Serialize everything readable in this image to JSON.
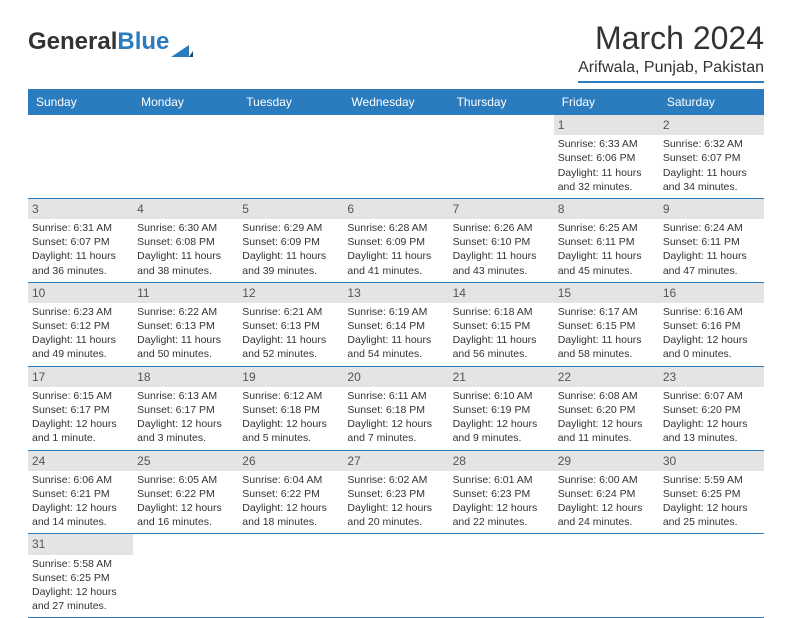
{
  "logo": {
    "text1": "General",
    "text2": "Blue"
  },
  "title": "March 2024",
  "location": "Arifwala, Punjab, Pakistan",
  "colors": {
    "accent": "#2b7bbf",
    "daynum_bg": "#e4e4e4",
    "text": "#333333",
    "bg": "#ffffff"
  },
  "day_headers": [
    "Sunday",
    "Monday",
    "Tuesday",
    "Wednesday",
    "Thursday",
    "Friday",
    "Saturday"
  ],
  "weeks": [
    [
      {
        "n": "",
        "sr": "",
        "ss": "",
        "dl": ""
      },
      {
        "n": "",
        "sr": "",
        "ss": "",
        "dl": ""
      },
      {
        "n": "",
        "sr": "",
        "ss": "",
        "dl": ""
      },
      {
        "n": "",
        "sr": "",
        "ss": "",
        "dl": ""
      },
      {
        "n": "",
        "sr": "",
        "ss": "",
        "dl": ""
      },
      {
        "n": "1",
        "sr": "Sunrise: 6:33 AM",
        "ss": "Sunset: 6:06 PM",
        "dl": "Daylight: 11 hours and 32 minutes."
      },
      {
        "n": "2",
        "sr": "Sunrise: 6:32 AM",
        "ss": "Sunset: 6:07 PM",
        "dl": "Daylight: 11 hours and 34 minutes."
      }
    ],
    [
      {
        "n": "3",
        "sr": "Sunrise: 6:31 AM",
        "ss": "Sunset: 6:07 PM",
        "dl": "Daylight: 11 hours and 36 minutes."
      },
      {
        "n": "4",
        "sr": "Sunrise: 6:30 AM",
        "ss": "Sunset: 6:08 PM",
        "dl": "Daylight: 11 hours and 38 minutes."
      },
      {
        "n": "5",
        "sr": "Sunrise: 6:29 AM",
        "ss": "Sunset: 6:09 PM",
        "dl": "Daylight: 11 hours and 39 minutes."
      },
      {
        "n": "6",
        "sr": "Sunrise: 6:28 AM",
        "ss": "Sunset: 6:09 PM",
        "dl": "Daylight: 11 hours and 41 minutes."
      },
      {
        "n": "7",
        "sr": "Sunrise: 6:26 AM",
        "ss": "Sunset: 6:10 PM",
        "dl": "Daylight: 11 hours and 43 minutes."
      },
      {
        "n": "8",
        "sr": "Sunrise: 6:25 AM",
        "ss": "Sunset: 6:11 PM",
        "dl": "Daylight: 11 hours and 45 minutes."
      },
      {
        "n": "9",
        "sr": "Sunrise: 6:24 AM",
        "ss": "Sunset: 6:11 PM",
        "dl": "Daylight: 11 hours and 47 minutes."
      }
    ],
    [
      {
        "n": "10",
        "sr": "Sunrise: 6:23 AM",
        "ss": "Sunset: 6:12 PM",
        "dl": "Daylight: 11 hours and 49 minutes."
      },
      {
        "n": "11",
        "sr": "Sunrise: 6:22 AM",
        "ss": "Sunset: 6:13 PM",
        "dl": "Daylight: 11 hours and 50 minutes."
      },
      {
        "n": "12",
        "sr": "Sunrise: 6:21 AM",
        "ss": "Sunset: 6:13 PM",
        "dl": "Daylight: 11 hours and 52 minutes."
      },
      {
        "n": "13",
        "sr": "Sunrise: 6:19 AM",
        "ss": "Sunset: 6:14 PM",
        "dl": "Daylight: 11 hours and 54 minutes."
      },
      {
        "n": "14",
        "sr": "Sunrise: 6:18 AM",
        "ss": "Sunset: 6:15 PM",
        "dl": "Daylight: 11 hours and 56 minutes."
      },
      {
        "n": "15",
        "sr": "Sunrise: 6:17 AM",
        "ss": "Sunset: 6:15 PM",
        "dl": "Daylight: 11 hours and 58 minutes."
      },
      {
        "n": "16",
        "sr": "Sunrise: 6:16 AM",
        "ss": "Sunset: 6:16 PM",
        "dl": "Daylight: 12 hours and 0 minutes."
      }
    ],
    [
      {
        "n": "17",
        "sr": "Sunrise: 6:15 AM",
        "ss": "Sunset: 6:17 PM",
        "dl": "Daylight: 12 hours and 1 minute."
      },
      {
        "n": "18",
        "sr": "Sunrise: 6:13 AM",
        "ss": "Sunset: 6:17 PM",
        "dl": "Daylight: 12 hours and 3 minutes."
      },
      {
        "n": "19",
        "sr": "Sunrise: 6:12 AM",
        "ss": "Sunset: 6:18 PM",
        "dl": "Daylight: 12 hours and 5 minutes."
      },
      {
        "n": "20",
        "sr": "Sunrise: 6:11 AM",
        "ss": "Sunset: 6:18 PM",
        "dl": "Daylight: 12 hours and 7 minutes."
      },
      {
        "n": "21",
        "sr": "Sunrise: 6:10 AM",
        "ss": "Sunset: 6:19 PM",
        "dl": "Daylight: 12 hours and 9 minutes."
      },
      {
        "n": "22",
        "sr": "Sunrise: 6:08 AM",
        "ss": "Sunset: 6:20 PM",
        "dl": "Daylight: 12 hours and 11 minutes."
      },
      {
        "n": "23",
        "sr": "Sunrise: 6:07 AM",
        "ss": "Sunset: 6:20 PM",
        "dl": "Daylight: 12 hours and 13 minutes."
      }
    ],
    [
      {
        "n": "24",
        "sr": "Sunrise: 6:06 AM",
        "ss": "Sunset: 6:21 PM",
        "dl": "Daylight: 12 hours and 14 minutes."
      },
      {
        "n": "25",
        "sr": "Sunrise: 6:05 AM",
        "ss": "Sunset: 6:22 PM",
        "dl": "Daylight: 12 hours and 16 minutes."
      },
      {
        "n": "26",
        "sr": "Sunrise: 6:04 AM",
        "ss": "Sunset: 6:22 PM",
        "dl": "Daylight: 12 hours and 18 minutes."
      },
      {
        "n": "27",
        "sr": "Sunrise: 6:02 AM",
        "ss": "Sunset: 6:23 PM",
        "dl": "Daylight: 12 hours and 20 minutes."
      },
      {
        "n": "28",
        "sr": "Sunrise: 6:01 AM",
        "ss": "Sunset: 6:23 PM",
        "dl": "Daylight: 12 hours and 22 minutes."
      },
      {
        "n": "29",
        "sr": "Sunrise: 6:00 AM",
        "ss": "Sunset: 6:24 PM",
        "dl": "Daylight: 12 hours and 24 minutes."
      },
      {
        "n": "30",
        "sr": "Sunrise: 5:59 AM",
        "ss": "Sunset: 6:25 PM",
        "dl": "Daylight: 12 hours and 25 minutes."
      }
    ],
    [
      {
        "n": "31",
        "sr": "Sunrise: 5:58 AM",
        "ss": "Sunset: 6:25 PM",
        "dl": "Daylight: 12 hours and 27 minutes."
      },
      {
        "n": "",
        "sr": "",
        "ss": "",
        "dl": ""
      },
      {
        "n": "",
        "sr": "",
        "ss": "",
        "dl": ""
      },
      {
        "n": "",
        "sr": "",
        "ss": "",
        "dl": ""
      },
      {
        "n": "",
        "sr": "",
        "ss": "",
        "dl": ""
      },
      {
        "n": "",
        "sr": "",
        "ss": "",
        "dl": ""
      },
      {
        "n": "",
        "sr": "",
        "ss": "",
        "dl": ""
      }
    ]
  ]
}
